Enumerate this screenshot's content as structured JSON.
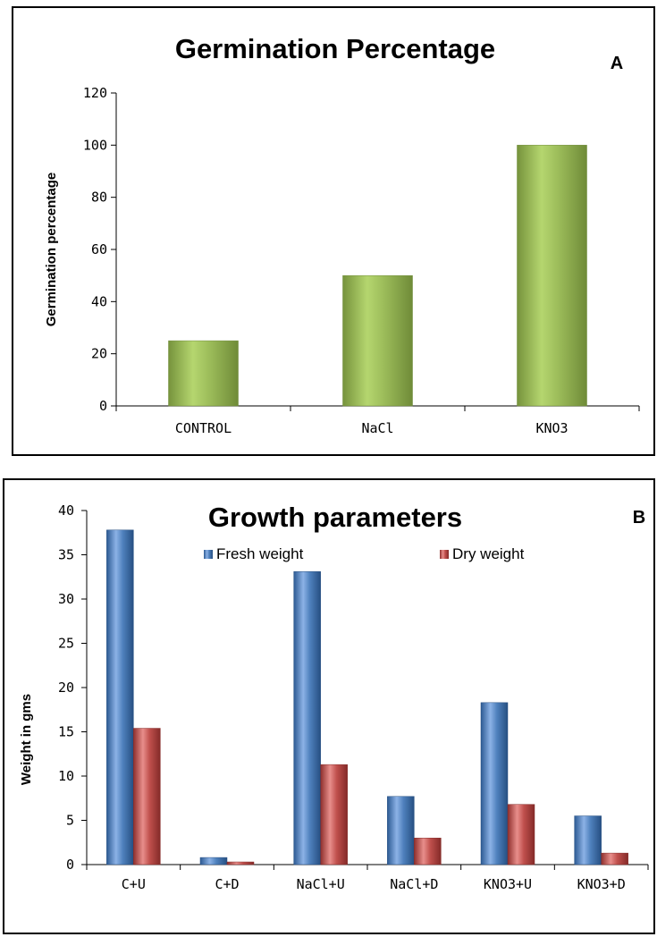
{
  "chart_data": [
    {
      "type": "bar",
      "title": "Germination Percentage",
      "panel_label": "A",
      "xlabel": "",
      "ylabel": "Germination percentage",
      "categories": [
        "CONTROL",
        "NaCl",
        "KNO3"
      ],
      "values": [
        25,
        50,
        100
      ],
      "ylim": [
        0,
        120
      ],
      "yticks": [
        "0",
        "20",
        "40",
        "60",
        "80",
        "100",
        "120"
      ],
      "grid": false,
      "colors": {
        "bar": "#9bbb59",
        "bar_light": "#c3e08a",
        "bar_dark": "#76933c"
      }
    },
    {
      "type": "bar",
      "title": "Growth parameters",
      "panel_label": "B",
      "xlabel": "",
      "ylabel": "Weight in gms",
      "categories": [
        "C+U",
        "C+D",
        "NaCl+U",
        "NaCl+D",
        "KNO3+U",
        "KNO3+D"
      ],
      "series": [
        {
          "name": "Fresh weight",
          "values": [
            37.8,
            0.8,
            33.1,
            7.7,
            18.3,
            5.5
          ]
        },
        {
          "name": "Dry weight",
          "values": [
            15.4,
            0.3,
            11.3,
            3.0,
            6.8,
            1.3
          ]
        }
      ],
      "ylim": [
        0,
        40
      ],
      "yticks": [
        "0",
        "5",
        "10",
        "15",
        "20",
        "25",
        "30",
        "35",
        "40"
      ],
      "legend_position": "top",
      "grid": false,
      "colors": {
        "fresh": "#4f81bd",
        "fresh_light": "#8cb2e6",
        "fresh_dark": "#2c5a93",
        "dry": "#c0504d",
        "dry_light": "#e88e8b",
        "dry_dark": "#8f2f2d"
      }
    }
  ]
}
